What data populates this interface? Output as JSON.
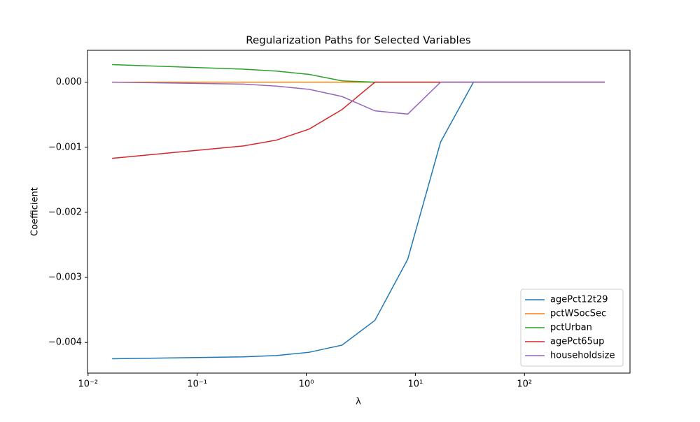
{
  "chart_data": {
    "type": "line",
    "title": "Regularization Paths for Selected Variables",
    "xlabel": "λ",
    "ylabel": "Coefficient",
    "xscale": "log",
    "x": [
      0.0166,
      0.266,
      0.532,
      1.064,
      2.128,
      4.256,
      8.512,
      17.02,
      34.05,
      544.8
    ],
    "series": [
      {
        "name": "agePct12t29",
        "color": "#1f77b4",
        "values": [
          -0.00425,
          -0.00422,
          -0.0042,
          -0.00415,
          -0.00404,
          -0.00366,
          -0.00272,
          -0.00092,
          0,
          0
        ]
      },
      {
        "name": "pctWSocSec",
        "color": "#ff7f0e",
        "values": [
          0,
          0,
          0,
          0,
          0,
          0,
          0,
          0,
          0,
          0
        ]
      },
      {
        "name": "pctUrban",
        "color": "#2ca02c",
        "values": [
          0.00027,
          0.0002,
          0.00017,
          0.00012,
          2e-05,
          0,
          0,
          0,
          0,
          0
        ]
      },
      {
        "name": "agePct65up",
        "color": "#d62728",
        "values": [
          -0.00117,
          -0.00098,
          -0.00089,
          -0.00072,
          -0.00042,
          0,
          0,
          0,
          0,
          0
        ]
      },
      {
        "name": "householdsize",
        "color": "#9467bd",
        "values": [
          0,
          -3e-05,
          -6e-05,
          -0.00011,
          -0.00022,
          -0.00044,
          -0.00049,
          0,
          0,
          0
        ]
      }
    ],
    "xlim": [
      0.00988,
      927
    ],
    "xticks": [
      {
        "value": 0.01,
        "label": "10⁻²"
      },
      {
        "value": 0.1,
        "label": "10⁻¹"
      },
      {
        "value": 1,
        "label": "10⁰"
      },
      {
        "value": 10,
        "label": "10¹"
      },
      {
        "value": 100,
        "label": "10²"
      }
    ],
    "ylim": [
      -0.00447,
      0.00049
    ],
    "yticks": [
      {
        "value": -0.004,
        "label": "−0.004"
      },
      {
        "value": -0.003,
        "label": "−0.003"
      },
      {
        "value": -0.002,
        "label": "−0.002"
      },
      {
        "value": -0.001,
        "label": "−0.001"
      },
      {
        "value": 0,
        "label": "0.000"
      }
    ],
    "legend": "lower right"
  }
}
